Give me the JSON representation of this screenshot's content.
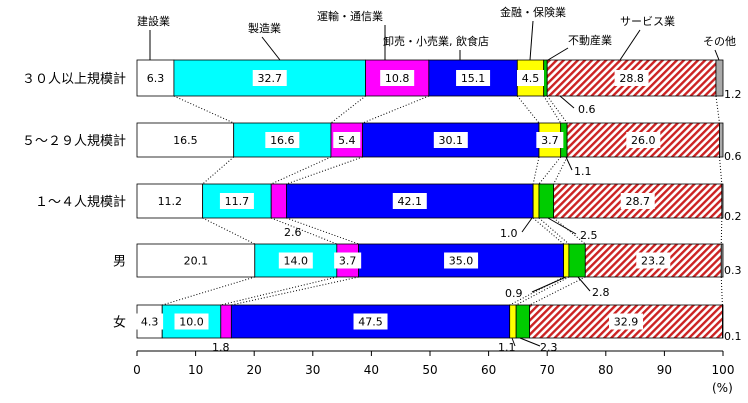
{
  "chart_data": {
    "type": "bar",
    "orientation": "horizontal",
    "stacked": true,
    "xlim": [
      0,
      100
    ],
    "xticks": [
      "0",
      "10",
      "20",
      "30",
      "40",
      "50",
      "60",
      "70",
      "80",
      "90",
      "100"
    ],
    "xunit": "(%)",
    "grid": false,
    "categories": [
      "３０人以上規模計",
      "５～２９人規模計",
      "１～４人規模計",
      "男",
      "女"
    ],
    "series": [
      {
        "name": "建設業",
        "color": "#ffffff",
        "values": [
          6.3,
          16.5,
          11.2,
          20.1,
          4.3
        ]
      },
      {
        "name": "製造業",
        "color": "#00ffff",
        "values": [
          32.7,
          16.6,
          11.7,
          14.0,
          10.0
        ]
      },
      {
        "name": "運輸・通信業",
        "color": "#ff00ff",
        "values": [
          10.8,
          5.4,
          2.6,
          3.7,
          1.8
        ]
      },
      {
        "name": "卸売・小売業, 飲食店",
        "color": "#0000ff",
        "values": [
          15.1,
          30.1,
          42.1,
          35.0,
          47.5
        ]
      },
      {
        "name": "金融・保険業",
        "color": "#ffff00",
        "values": [
          4.5,
          3.7,
          1.0,
          0.9,
          1.1
        ]
      },
      {
        "name": "不動産業",
        "color": "#00cc00",
        "values": [
          0.6,
          1.1,
          2.5,
          2.8,
          2.3
        ]
      },
      {
        "name": "サービス業",
        "color": "#cc2222",
        "pattern": "hatch",
        "values": [
          28.8,
          26.0,
          28.7,
          23.2,
          32.9
        ]
      },
      {
        "name": "その他",
        "color": "#aaaaaa",
        "values": [
          1.2,
          0.6,
          0.2,
          0.3,
          0.1
        ]
      }
    ],
    "inside_labels": [
      [
        "6.3",
        "32.7",
        "10.8",
        "15.1",
        "4.5",
        "",
        "28.8",
        ""
      ],
      [
        "16.5",
        "16.6",
        "5.4",
        "30.1",
        "3.7",
        "",
        "26.0",
        ""
      ],
      [
        "11.2",
        "11.7",
        "",
        "42.1",
        "",
        "",
        "28.7",
        ""
      ],
      [
        "20.1",
        "14.0",
        "3.7",
        "35.0",
        "",
        "",
        "23.2",
        ""
      ],
      [
        "4.3",
        "10.0",
        "",
        "47.5",
        "",
        "",
        "32.9",
        ""
      ]
    ],
    "outside_labels": [
      [
        "0.6",
        "1.2"
      ],
      [
        "1.1",
        "0.6"
      ],
      [
        "2.6",
        "1.0",
        "2.5",
        "0.2"
      ],
      [
        "0.9",
        "2.8",
        "0.3"
      ],
      [
        "1.8",
        "1.1",
        "2.3",
        "0.1"
      ]
    ]
  }
}
